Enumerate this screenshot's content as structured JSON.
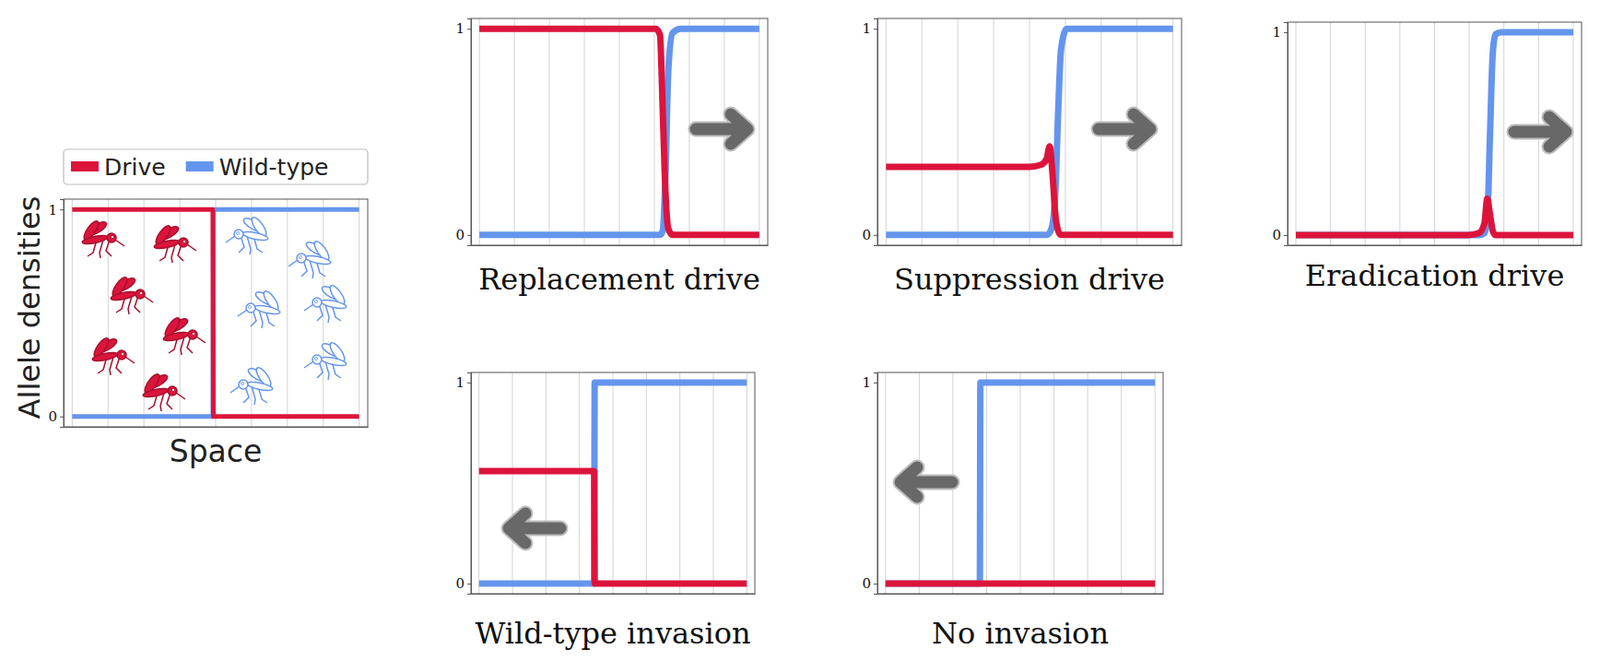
{
  "chart_data": [
    {
      "type": "line",
      "xlabel": "Space",
      "ylabel": "Allele densities",
      "legend": "top",
      "grid": "x",
      "tick_labels": "y",
      "xlim": [
        -0.03,
        1.03
      ],
      "ylim": [
        -0.05,
        1.05
      ],
      "xticks": [
        0,
        0.125,
        0.25,
        0.375,
        0.5,
        0.625,
        0.75,
        0.875,
        1
      ],
      "yticks": [
        0,
        1
      ],
      "x": [
        0,
        0.49,
        0.492,
        1
      ],
      "series": [
        {
          "name": "Drive",
          "color": "#dc143c",
          "values": [
            1,
            1,
            0,
            0
          ]
        },
        {
          "name": "Wild-type",
          "color": "#6495ed",
          "values": [
            0,
            0,
            1,
            1
          ]
        }
      ]
    },
    {
      "type": "line",
      "title": "Replacement drive",
      "grid": "x",
      "tick_labels": "y",
      "xlim": [
        -0.03,
        1.03
      ],
      "ylim": [
        -0.05,
        1.05
      ],
      "xticks": [
        0,
        0.125,
        0.25,
        0.375,
        0.5,
        0.625,
        0.75,
        0.875,
        1
      ],
      "yticks": [
        0,
        1
      ],
      "x": [
        0,
        0.6,
        0.63,
        0.645,
        0.655,
        0.665,
        0.675,
        0.69,
        0.72,
        1
      ],
      "series": [
        {
          "color": "#dc143c",
          "values": [
            1,
            1,
            1,
            0.97,
            0.6,
            0.2,
            0.03,
            0,
            0,
            0
          ]
        },
        {
          "color": "#6495ed",
          "values": [
            0,
            0,
            0,
            0,
            0.02,
            0.3,
            0.8,
            0.98,
            1,
            1
          ]
        }
      ]
    },
    {
      "type": "line",
      "title": "Suppression drive",
      "grid": "x",
      "tick_labels": "y",
      "xlim": [
        -0.03,
        1.03
      ],
      "ylim": [
        -0.05,
        1.05
      ],
      "xticks": [
        0,
        0.125,
        0.25,
        0.375,
        0.5,
        0.625,
        0.75,
        0.875,
        1
      ],
      "yticks": [
        0,
        1
      ],
      "x": [
        0,
        0.5,
        0.54,
        0.56,
        0.57,
        0.58,
        0.59,
        0.6,
        0.61,
        0.63,
        1
      ],
      "series": [
        {
          "color": "#dc143c",
          "values": [
            0.33,
            0.33,
            0.34,
            0.37,
            0.43,
            0.3,
            0.1,
            0.02,
            0,
            0,
            0
          ]
        },
        {
          "color": "#6495ed",
          "values": [
            0,
            0,
            0,
            0,
            0.01,
            0.05,
            0.2,
            0.6,
            0.9,
            1,
            1
          ]
        }
      ]
    },
    {
      "type": "line",
      "title": "Eradication drive",
      "grid": "x",
      "tick_labels": "y",
      "xlim": [
        -0.03,
        1.03
      ],
      "ylim": [
        -0.05,
        1.05
      ],
      "xticks": [
        0,
        0.125,
        0.25,
        0.375,
        0.5,
        0.625,
        0.75,
        0.875,
        1
      ],
      "yticks": [
        0,
        1
      ],
      "x": [
        0,
        0.62,
        0.66,
        0.68,
        0.69,
        0.7,
        0.71,
        0.72,
        0.74,
        1
      ],
      "series": [
        {
          "color": "#dc143c",
          "values": [
            0,
            0,
            0.01,
            0.06,
            0.18,
            0.1,
            0.02,
            0,
            0,
            0
          ]
        },
        {
          "color": "#6495ed",
          "values": [
            0,
            0,
            0,
            0.01,
            0.08,
            0.5,
            0.9,
            0.99,
            1,
            1
          ]
        }
      ]
    },
    {
      "type": "line",
      "title": "Wild-type invasion",
      "grid": "x",
      "tick_labels": "y",
      "xlim": [
        -0.03,
        1.03
      ],
      "ylim": [
        -0.05,
        1.05
      ],
      "xticks": [
        0,
        0.125,
        0.25,
        0.375,
        0.5,
        0.625,
        0.75,
        0.875,
        1
      ],
      "yticks": [
        0,
        1
      ],
      "x": [
        0,
        0.43,
        0.432,
        1
      ],
      "series": [
        {
          "color": "#dc143c",
          "values": [
            0.56,
            0.56,
            0,
            0
          ]
        },
        {
          "color": "#6495ed",
          "values": [
            0,
            0,
            1,
            1
          ]
        }
      ]
    },
    {
      "type": "line",
      "title": "No invasion",
      "grid": "x",
      "tick_labels": "y",
      "xlim": [
        -0.03,
        1.03
      ],
      "ylim": [
        -0.05,
        1.05
      ],
      "xticks": [
        0,
        0.125,
        0.25,
        0.375,
        0.5,
        0.625,
        0.75,
        0.875,
        1
      ],
      "yticks": [
        0,
        1
      ],
      "x": [
        0,
        0.35,
        0.352,
        1
      ],
      "series": [
        {
          "color": "#dc143c",
          "values": [
            0,
            0,
            0,
            0
          ]
        },
        {
          "color": "#6495ed",
          "values": [
            0,
            0,
            1,
            1
          ]
        }
      ]
    }
  ]
}
